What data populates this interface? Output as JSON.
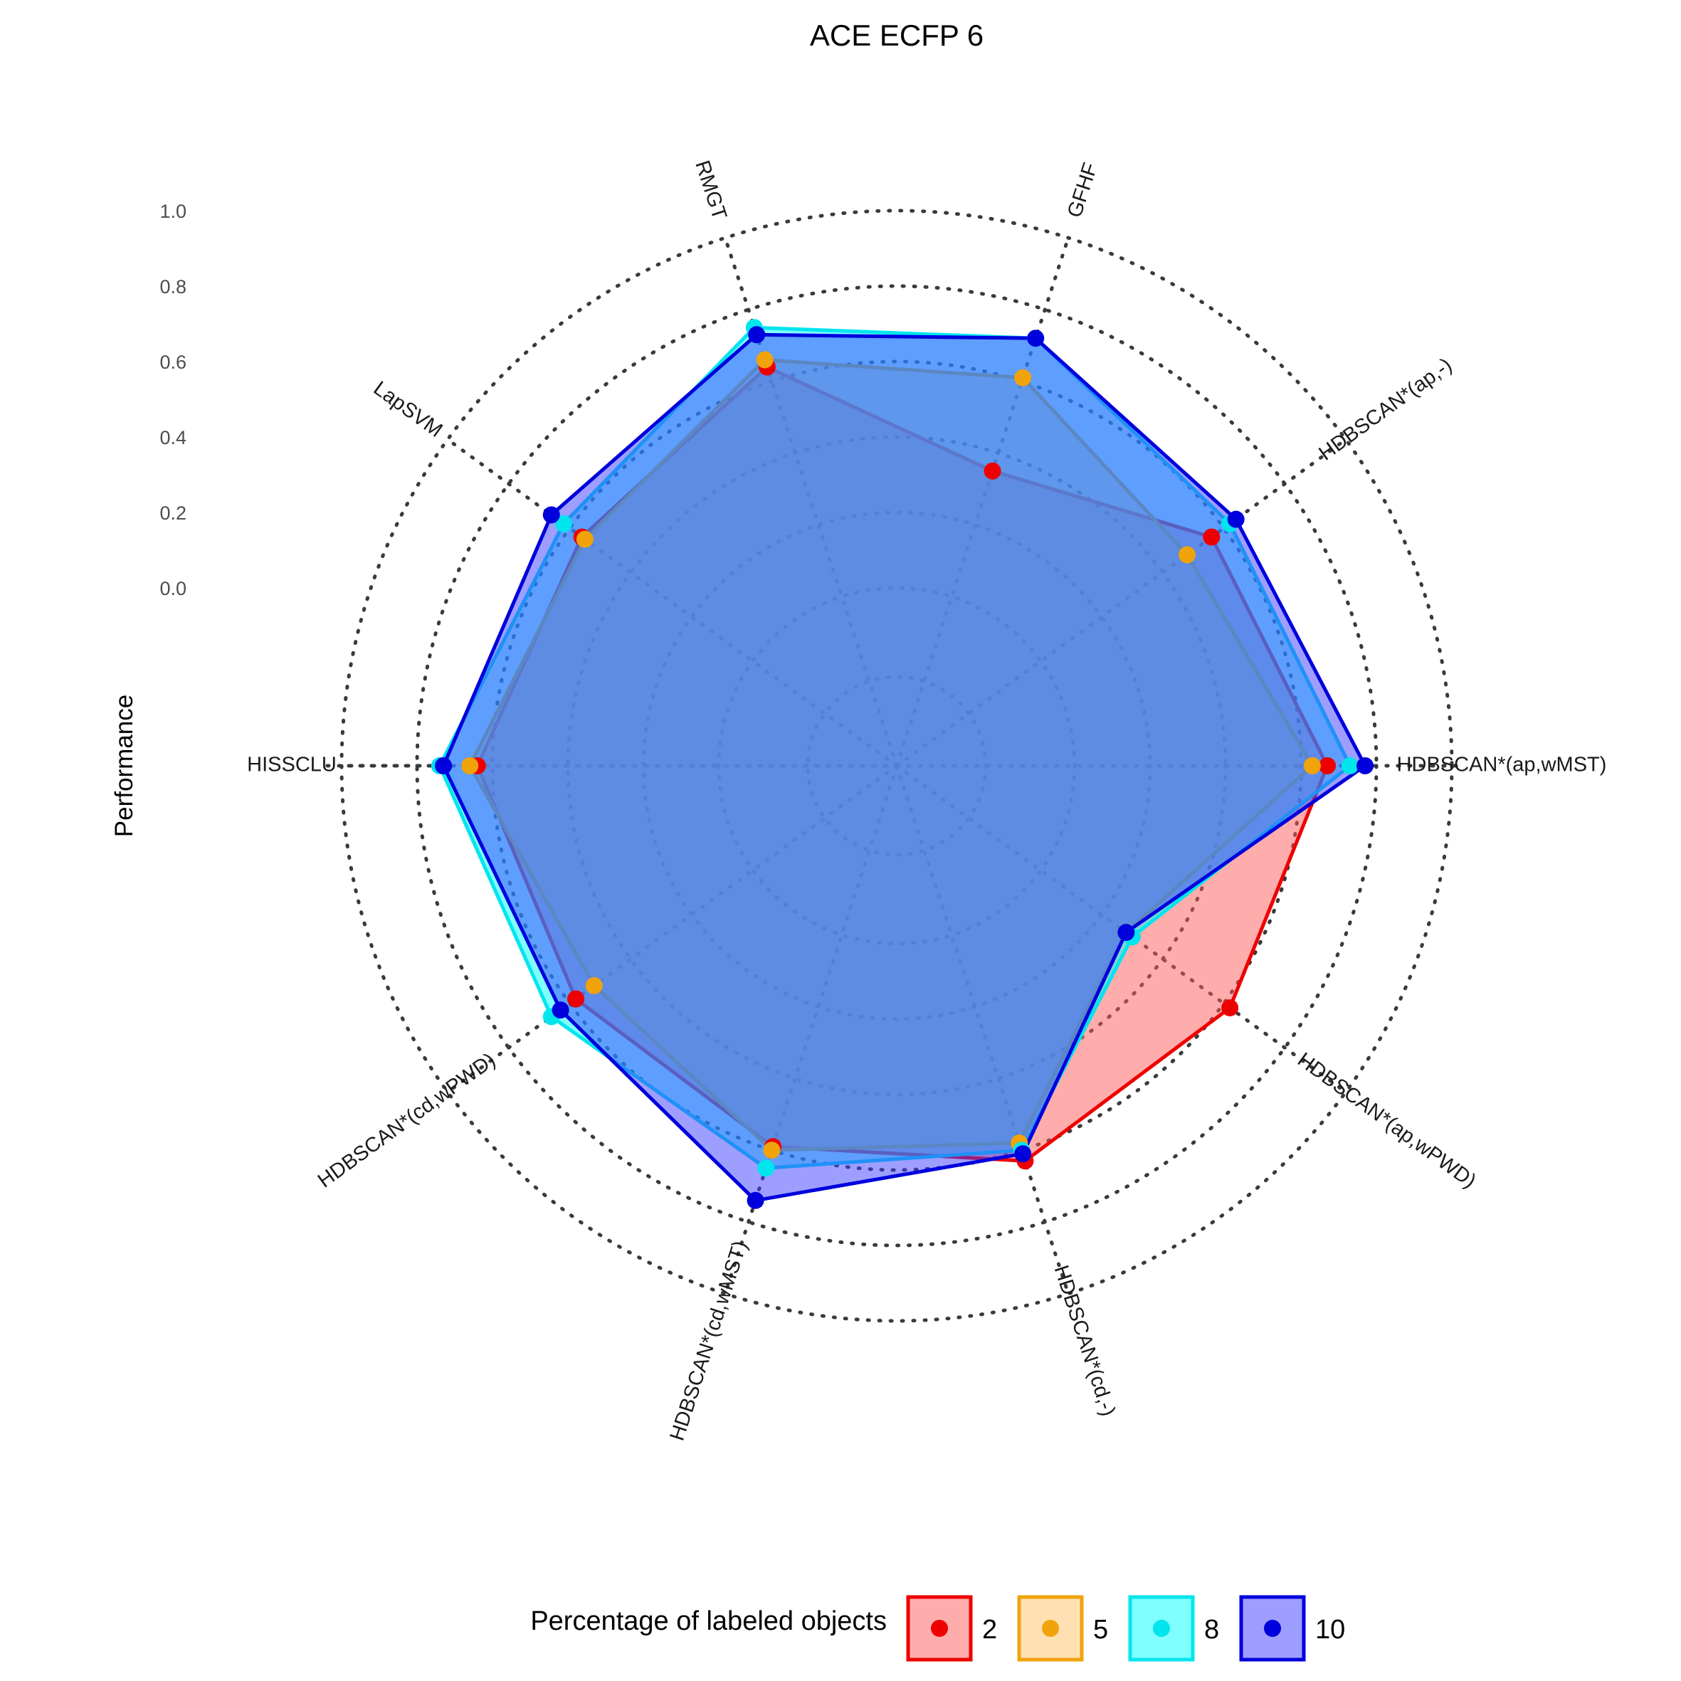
{
  "chart_data": {
    "type": "radar",
    "title": "ACE ECFP 6",
    "ylabel": "Performance",
    "ylim": [
      0,
      1.0
    ],
    "yticks": [
      "0.0",
      "0.2",
      "0.4",
      "0.6",
      "0.8",
      "1.0"
    ],
    "grid": true,
    "categories": [
      "GFHF",
      "HDBSCAN*(ap,-)",
      "HDBSCAN*(ap,wMST)",
      "HDBSCAN*(ap,wPWD)",
      "HDBSCAN*(cd,-)",
      "HDBSCAN*(cd,wMST)",
      "HDBSCAN*(cd,wPWD)",
      "HISSCLU",
      "LapSVM",
      "RMGT"
    ],
    "legend": {
      "title": "Percentage of labeled objects",
      "position": "bottom"
    },
    "series": [
      {
        "name": "2",
        "color": "#ee0000",
        "fill": "#ff5a5a",
        "values": [
          0.35,
          0.56,
          0.67,
          0.62,
          0.63,
          0.59,
          0.58,
          0.64,
          0.56,
          0.64
        ]
      },
      {
        "name": "5",
        "color": "#f0a30a",
        "fill": "#ffc266",
        "values": [
          0.61,
          0.48,
          0.63,
          0.28,
          0.58,
          0.6,
          0.52,
          0.66,
          0.55,
          0.66
        ]
      },
      {
        "name": "8",
        "color": "#00e5ee",
        "fill": "#00ffff",
        "values": [
          0.72,
          0.62,
          0.73,
          0.3,
          0.6,
          0.65,
          0.66,
          0.74,
          0.62,
          0.75
        ]
      },
      {
        "name": "10",
        "color": "#0000dd",
        "fill": "#3d3dff",
        "values": [
          0.72,
          0.64,
          0.77,
          0.28,
          0.61,
          0.74,
          0.63,
          0.73,
          0.66,
          0.73
        ]
      }
    ]
  }
}
